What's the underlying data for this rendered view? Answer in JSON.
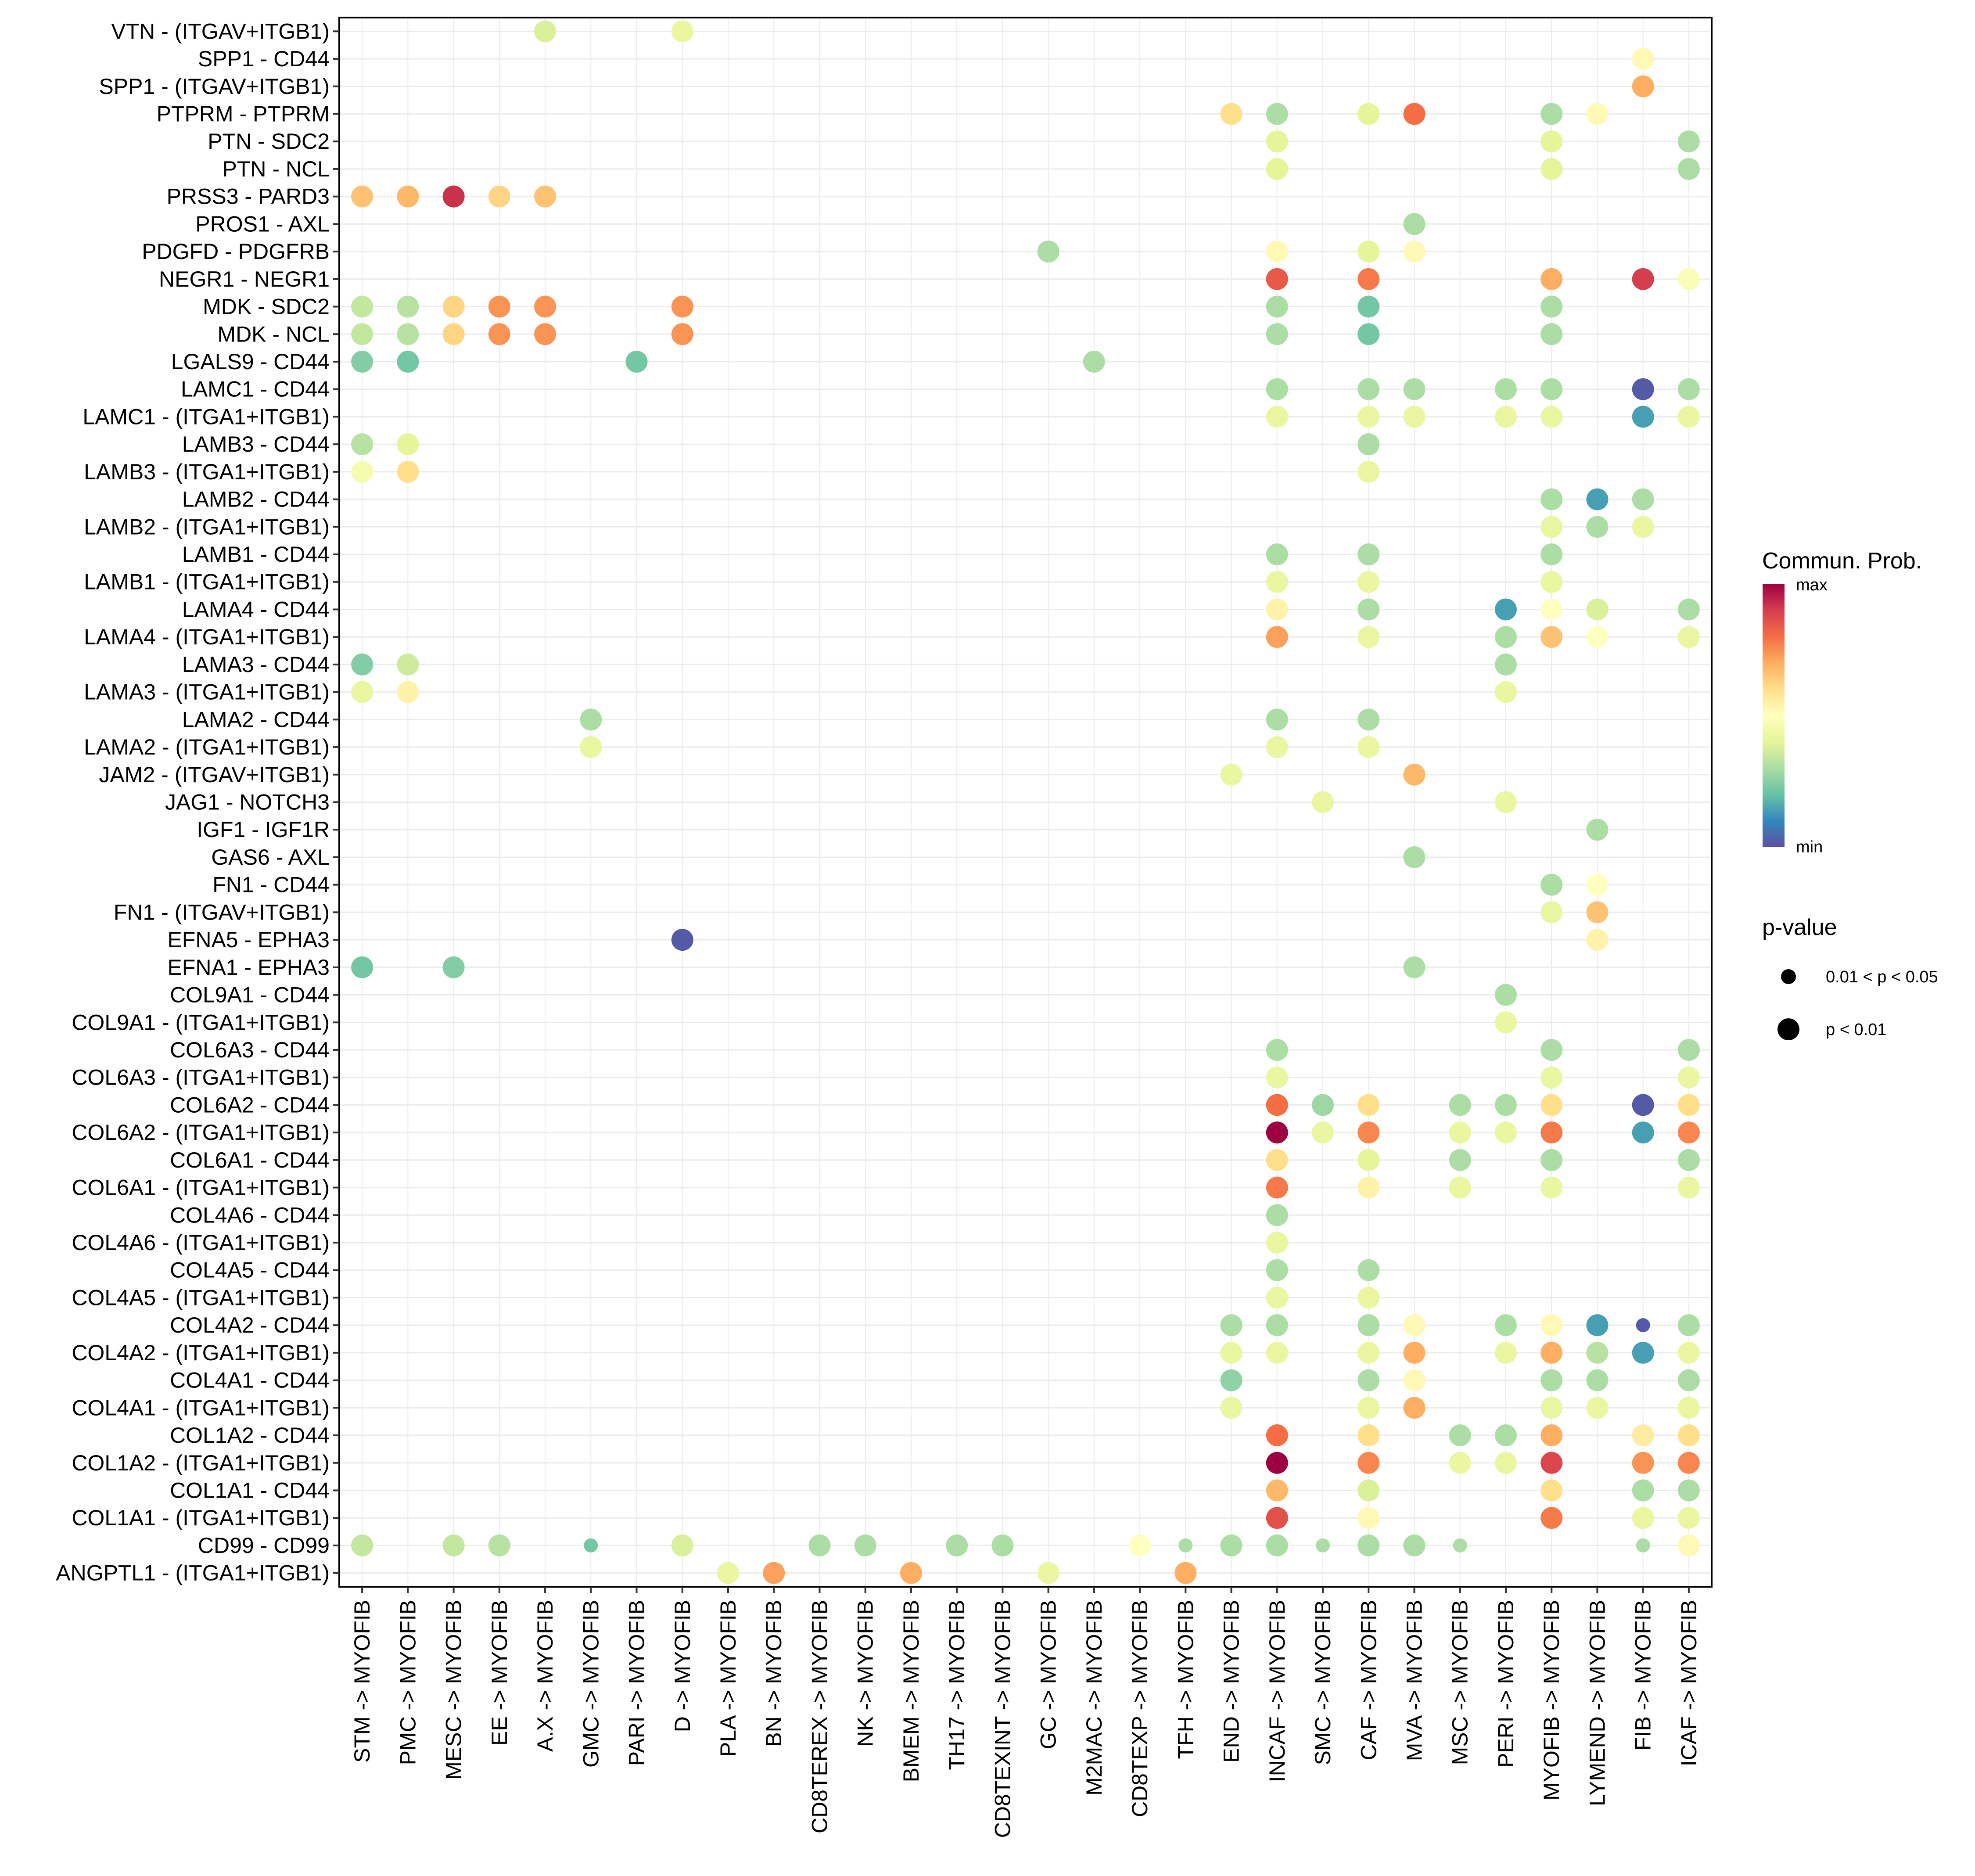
{
  "chart_data": {
    "type": "scatter",
    "subtype": "dot-plot",
    "title": "",
    "xlabel": "",
    "ylabel": "",
    "grid": true,
    "x_categories": [
      "STM -> MYOFIB",
      "PMC -> MYOFIB",
      "MESC -> MYOFIB",
      "EE -> MYOFIB",
      "A.X -> MYOFIB",
      "GMC -> MYOFIB",
      "PARI -> MYOFIB",
      "D -> MYOFIB",
      "PLA -> MYOFIB",
      "BN -> MYOFIB",
      "CD8TEREX -> MYOFIB",
      "NK -> MYOFIB",
      "BMEM -> MYOFIB",
      "TH17 -> MYOFIB",
      "CD8TEXINT -> MYOFIB",
      "GC -> MYOFIB",
      "M2MAC -> MYOFIB",
      "CD8TEXP -> MYOFIB",
      "TFH -> MYOFIB",
      "END -> MYOFIB",
      "INCAF -> MYOFIB",
      "SMC -> MYOFIB",
      "CAF -> MYOFIB",
      "MVA -> MYOFIB",
      "MSC -> MYOFIB",
      "PERI -> MYOFIB",
      "MYOFIB -> MYOFIB",
      "LYMEND -> MYOFIB",
      "FIB -> MYOFIB",
      "ICAF -> MYOFIB"
    ],
    "y_categories": [
      "VTN - (ITGAV+ITGB1)",
      "SPP1 - CD44",
      "SPP1 - (ITGAV+ITGB1)",
      "PTPRM - PTPRM",
      "PTN - SDC2",
      "PTN - NCL",
      "PRSS3 - PARD3",
      "PROS1 - AXL",
      "PDGFD - PDGFRB",
      "NEGR1 - NEGR1",
      "MDK - SDC2",
      "MDK - NCL",
      "LGALS9 - CD44",
      "LAMC1 - CD44",
      "LAMC1 - (ITGA1+ITGB1)",
      "LAMB3 - CD44",
      "LAMB3 - (ITGA1+ITGB1)",
      "LAMB2 - CD44",
      "LAMB2 - (ITGA1+ITGB1)",
      "LAMB1 - CD44",
      "LAMB1 - (ITGA1+ITGB1)",
      "LAMA4 - CD44",
      "LAMA4 - (ITGA1+ITGB1)",
      "LAMA3 - CD44",
      "LAMA3 - (ITGA1+ITGB1)",
      "LAMA2 - CD44",
      "LAMA2 - (ITGA1+ITGB1)",
      "JAM2 - (ITGAV+ITGB1)",
      "JAG1 - NOTCH3",
      "IGF1 - IGF1R",
      "GAS6 - AXL",
      "FN1 - CD44",
      "FN1 - (ITGAV+ITGB1)",
      "EFNA5 - EPHA3",
      "EFNA1 - EPHA3",
      "COL9A1 - CD44",
      "COL9A1 - (ITGA1+ITGB1)",
      "COL6A3 - CD44",
      "COL6A3 - (ITGA1+ITGB1)",
      "COL6A2 - CD44",
      "COL6A2 - (ITGA1+ITGB1)",
      "COL6A1 - CD44",
      "COL6A1 - (ITGA1+ITGB1)",
      "COL4A6 - CD44",
      "COL4A6 - (ITGA1+ITGB1)",
      "COL4A5 - CD44",
      "COL4A5 - (ITGA1+ITGB1)",
      "COL4A2 - CD44",
      "COL4A2 - (ITGA1+ITGB1)",
      "COL4A1 - CD44",
      "COL4A1 - (ITGA1+ITGB1)",
      "COL1A2 - CD44",
      "COL1A2 - (ITGA1+ITGB1)",
      "COL1A1 - CD44",
      "COL1A1 - (ITGA1+ITGB1)",
      "CD99 - CD99",
      "ANGPTL1 - (ITGA1+ITGB1)"
    ],
    "points_note": "each point: [row_index, col_index, comm_prob_relative 0=min..1=max, pvalue_class 1='p < 0.01' 0='0.01 < p < 0.05']",
    "points": [
      [
        0,
        4,
        0.38,
        1
      ],
      [
        0,
        7,
        0.42,
        1
      ],
      [
        1,
        28,
        0.52,
        1
      ],
      [
        2,
        28,
        0.7,
        1
      ],
      [
        3,
        19,
        0.6,
        1
      ],
      [
        3,
        20,
        0.3,
        1
      ],
      [
        3,
        22,
        0.4,
        1
      ],
      [
        3,
        23,
        0.8,
        1
      ],
      [
        3,
        26,
        0.3,
        1
      ],
      [
        3,
        27,
        0.52,
        1
      ],
      [
        4,
        20,
        0.4,
        1
      ],
      [
        4,
        26,
        0.4,
        1
      ],
      [
        4,
        29,
        0.3,
        1
      ],
      [
        5,
        20,
        0.4,
        1
      ],
      [
        5,
        26,
        0.4,
        1
      ],
      [
        5,
        29,
        0.3,
        1
      ],
      [
        6,
        0,
        0.66,
        1
      ],
      [
        6,
        1,
        0.68,
        1
      ],
      [
        6,
        2,
        0.92,
        1
      ],
      [
        6,
        3,
        0.62,
        1
      ],
      [
        6,
        4,
        0.66,
        1
      ],
      [
        7,
        23,
        0.3,
        1
      ],
      [
        8,
        15,
        0.3,
        1
      ],
      [
        8,
        20,
        0.52,
        1
      ],
      [
        8,
        22,
        0.4,
        1
      ],
      [
        8,
        23,
        0.52,
        1
      ],
      [
        9,
        20,
        0.84,
        1
      ],
      [
        9,
        22,
        0.78,
        1
      ],
      [
        9,
        26,
        0.7,
        1
      ],
      [
        9,
        28,
        0.9,
        1
      ],
      [
        9,
        29,
        0.48,
        1
      ],
      [
        10,
        0,
        0.34,
        1
      ],
      [
        10,
        1,
        0.32,
        1
      ],
      [
        10,
        2,
        0.62,
        1
      ],
      [
        10,
        3,
        0.74,
        1
      ],
      [
        10,
        4,
        0.74,
        1
      ],
      [
        10,
        7,
        0.74,
        1
      ],
      [
        10,
        20,
        0.3,
        1
      ],
      [
        10,
        22,
        0.22,
        1
      ],
      [
        10,
        26,
        0.3,
        1
      ],
      [
        11,
        0,
        0.34,
        1
      ],
      [
        11,
        1,
        0.32,
        1
      ],
      [
        11,
        2,
        0.62,
        1
      ],
      [
        11,
        3,
        0.74,
        1
      ],
      [
        11,
        4,
        0.74,
        1
      ],
      [
        11,
        7,
        0.74,
        1
      ],
      [
        11,
        20,
        0.3,
        1
      ],
      [
        11,
        22,
        0.22,
        1
      ],
      [
        11,
        26,
        0.3,
        1
      ],
      [
        12,
        0,
        0.24,
        1
      ],
      [
        12,
        1,
        0.22,
        1
      ],
      [
        12,
        6,
        0.22,
        1
      ],
      [
        12,
        16,
        0.3,
        1
      ],
      [
        13,
        20,
        0.3,
        1
      ],
      [
        13,
        22,
        0.3,
        1
      ],
      [
        13,
        23,
        0.3,
        1
      ],
      [
        13,
        25,
        0.3,
        1
      ],
      [
        13,
        26,
        0.3,
        1
      ],
      [
        13,
        28,
        0.02,
        1
      ],
      [
        13,
        29,
        0.3,
        1
      ],
      [
        14,
        20,
        0.42,
        1
      ],
      [
        14,
        22,
        0.42,
        1
      ],
      [
        14,
        23,
        0.42,
        1
      ],
      [
        14,
        25,
        0.42,
        1
      ],
      [
        14,
        26,
        0.42,
        1
      ],
      [
        14,
        28,
        0.14,
        1
      ],
      [
        14,
        29,
        0.42,
        1
      ],
      [
        15,
        0,
        0.32,
        1
      ],
      [
        15,
        1,
        0.4,
        1
      ],
      [
        15,
        22,
        0.3,
        1
      ],
      [
        16,
        0,
        0.46,
        1
      ],
      [
        16,
        1,
        0.6,
        1
      ],
      [
        16,
        22,
        0.42,
        1
      ],
      [
        17,
        26,
        0.3,
        1
      ],
      [
        17,
        27,
        0.14,
        1
      ],
      [
        17,
        28,
        0.3,
        1
      ],
      [
        18,
        26,
        0.42,
        1
      ],
      [
        18,
        27,
        0.3,
        1
      ],
      [
        18,
        28,
        0.42,
        1
      ],
      [
        19,
        20,
        0.3,
        1
      ],
      [
        19,
        22,
        0.3,
        1
      ],
      [
        19,
        26,
        0.3,
        1
      ],
      [
        20,
        20,
        0.42,
        1
      ],
      [
        20,
        22,
        0.42,
        1
      ],
      [
        20,
        26,
        0.42,
        1
      ],
      [
        21,
        20,
        0.54,
        1
      ],
      [
        21,
        22,
        0.3,
        1
      ],
      [
        21,
        25,
        0.14,
        1
      ],
      [
        21,
        26,
        0.5,
        1
      ],
      [
        21,
        27,
        0.38,
        1
      ],
      [
        21,
        29,
        0.3,
        1
      ],
      [
        22,
        20,
        0.72,
        1
      ],
      [
        22,
        22,
        0.42,
        1
      ],
      [
        22,
        25,
        0.3,
        1
      ],
      [
        22,
        26,
        0.66,
        1
      ],
      [
        22,
        27,
        0.5,
        1
      ],
      [
        22,
        29,
        0.42,
        1
      ],
      [
        23,
        0,
        0.24,
        1
      ],
      [
        23,
        1,
        0.36,
        1
      ],
      [
        23,
        25,
        0.3,
        1
      ],
      [
        24,
        0,
        0.42,
        1
      ],
      [
        24,
        1,
        0.54,
        1
      ],
      [
        24,
        25,
        0.42,
        1
      ],
      [
        25,
        5,
        0.3,
        1
      ],
      [
        25,
        20,
        0.3,
        1
      ],
      [
        25,
        22,
        0.3,
        1
      ],
      [
        26,
        5,
        0.42,
        1
      ],
      [
        26,
        20,
        0.42,
        1
      ],
      [
        26,
        22,
        0.42,
        1
      ],
      [
        27,
        19,
        0.42,
        1
      ],
      [
        27,
        23,
        0.68,
        1
      ],
      [
        28,
        21,
        0.42,
        1
      ],
      [
        28,
        25,
        0.42,
        1
      ],
      [
        29,
        27,
        0.3,
        1
      ],
      [
        30,
        23,
        0.3,
        1
      ],
      [
        31,
        26,
        0.3,
        1
      ],
      [
        31,
        27,
        0.5,
        1
      ],
      [
        32,
        26,
        0.42,
        1
      ],
      [
        32,
        27,
        0.66,
        1
      ],
      [
        33,
        7,
        0.02,
        1
      ],
      [
        33,
        27,
        0.54,
        1
      ],
      [
        34,
        0,
        0.22,
        1
      ],
      [
        34,
        2,
        0.24,
        1
      ],
      [
        34,
        23,
        0.3,
        1
      ],
      [
        35,
        25,
        0.3,
        1
      ],
      [
        36,
        25,
        0.42,
        1
      ],
      [
        37,
        20,
        0.3,
        1
      ],
      [
        37,
        26,
        0.3,
        1
      ],
      [
        37,
        29,
        0.3,
        1
      ],
      [
        38,
        20,
        0.42,
        1
      ],
      [
        38,
        26,
        0.42,
        1
      ],
      [
        38,
        29,
        0.42,
        1
      ],
      [
        39,
        20,
        0.8,
        1
      ],
      [
        39,
        21,
        0.28,
        1
      ],
      [
        39,
        22,
        0.6,
        1
      ],
      [
        39,
        24,
        0.3,
        1
      ],
      [
        39,
        25,
        0.3,
        1
      ],
      [
        39,
        26,
        0.6,
        1
      ],
      [
        39,
        28,
        0.02,
        1
      ],
      [
        39,
        29,
        0.6,
        1
      ],
      [
        40,
        20,
        1.0,
        1
      ],
      [
        40,
        21,
        0.42,
        1
      ],
      [
        40,
        22,
        0.76,
        1
      ],
      [
        40,
        24,
        0.42,
        1
      ],
      [
        40,
        25,
        0.42,
        1
      ],
      [
        40,
        26,
        0.78,
        1
      ],
      [
        40,
        28,
        0.14,
        1
      ],
      [
        40,
        29,
        0.76,
        1
      ],
      [
        41,
        20,
        0.6,
        1
      ],
      [
        41,
        22,
        0.4,
        1
      ],
      [
        41,
        24,
        0.3,
        1
      ],
      [
        41,
        26,
        0.3,
        1
      ],
      [
        41,
        29,
        0.3,
        1
      ],
      [
        42,
        20,
        0.78,
        1
      ],
      [
        42,
        22,
        0.54,
        1
      ],
      [
        42,
        24,
        0.42,
        1
      ],
      [
        42,
        26,
        0.42,
        1
      ],
      [
        42,
        29,
        0.42,
        1
      ],
      [
        43,
        20,
        0.3,
        1
      ],
      [
        44,
        20,
        0.42,
        1
      ],
      [
        45,
        20,
        0.3,
        1
      ],
      [
        45,
        22,
        0.3,
        1
      ],
      [
        46,
        20,
        0.42,
        1
      ],
      [
        46,
        22,
        0.42,
        1
      ],
      [
        47,
        19,
        0.3,
        1
      ],
      [
        47,
        20,
        0.3,
        1
      ],
      [
        47,
        22,
        0.3,
        1
      ],
      [
        47,
        23,
        0.52,
        1
      ],
      [
        47,
        25,
        0.3,
        1
      ],
      [
        47,
        26,
        0.52,
        1
      ],
      [
        47,
        27,
        0.14,
        1
      ],
      [
        47,
        28,
        0.02,
        0
      ],
      [
        47,
        29,
        0.3,
        1
      ],
      [
        48,
        19,
        0.42,
        1
      ],
      [
        48,
        20,
        0.42,
        1
      ],
      [
        48,
        22,
        0.42,
        1
      ],
      [
        48,
        23,
        0.7,
        1
      ],
      [
        48,
        25,
        0.42,
        1
      ],
      [
        48,
        26,
        0.7,
        1
      ],
      [
        48,
        27,
        0.32,
        1
      ],
      [
        48,
        28,
        0.14,
        1
      ],
      [
        48,
        29,
        0.42,
        1
      ],
      [
        49,
        19,
        0.26,
        1
      ],
      [
        49,
        22,
        0.3,
        1
      ],
      [
        49,
        23,
        0.52,
        1
      ],
      [
        49,
        26,
        0.3,
        1
      ],
      [
        49,
        27,
        0.3,
        1
      ],
      [
        49,
        29,
        0.3,
        1
      ],
      [
        50,
        19,
        0.42,
        1
      ],
      [
        50,
        22,
        0.42,
        1
      ],
      [
        50,
        23,
        0.7,
        1
      ],
      [
        50,
        26,
        0.42,
        1
      ],
      [
        50,
        27,
        0.42,
        1
      ],
      [
        50,
        29,
        0.42,
        1
      ],
      [
        51,
        20,
        0.8,
        1
      ],
      [
        51,
        22,
        0.6,
        1
      ],
      [
        51,
        24,
        0.3,
        1
      ],
      [
        51,
        25,
        0.3,
        1
      ],
      [
        51,
        26,
        0.7,
        1
      ],
      [
        51,
        28,
        0.56,
        1
      ],
      [
        51,
        29,
        0.6,
        1
      ],
      [
        52,
        20,
        1.0,
        1
      ],
      [
        52,
        22,
        0.76,
        1
      ],
      [
        52,
        24,
        0.42,
        1
      ],
      [
        52,
        25,
        0.42,
        1
      ],
      [
        52,
        26,
        0.88,
        1
      ],
      [
        52,
        28,
        0.74,
        1
      ],
      [
        52,
        29,
        0.76,
        1
      ],
      [
        53,
        20,
        0.68,
        1
      ],
      [
        53,
        22,
        0.38,
        1
      ],
      [
        53,
        26,
        0.6,
        1
      ],
      [
        53,
        28,
        0.3,
        1
      ],
      [
        53,
        29,
        0.3,
        1
      ],
      [
        54,
        20,
        0.86,
        1
      ],
      [
        54,
        22,
        0.52,
        1
      ],
      [
        54,
        26,
        0.78,
        1
      ],
      [
        54,
        28,
        0.42,
        1
      ],
      [
        54,
        29,
        0.42,
        1
      ],
      [
        55,
        0,
        0.34,
        1
      ],
      [
        55,
        2,
        0.34,
        1
      ],
      [
        55,
        3,
        0.32,
        1
      ],
      [
        55,
        5,
        0.22,
        0
      ],
      [
        55,
        7,
        0.38,
        1
      ],
      [
        55,
        10,
        0.3,
        1
      ],
      [
        55,
        11,
        0.3,
        1
      ],
      [
        55,
        13,
        0.3,
        1
      ],
      [
        55,
        14,
        0.3,
        1
      ],
      [
        55,
        17,
        0.5,
        1
      ],
      [
        55,
        18,
        0.3,
        0
      ],
      [
        55,
        19,
        0.3,
        1
      ],
      [
        55,
        20,
        0.3,
        1
      ],
      [
        55,
        21,
        0.3,
        0
      ],
      [
        55,
        22,
        0.3,
        1
      ],
      [
        55,
        23,
        0.3,
        1
      ],
      [
        55,
        24,
        0.3,
        0
      ],
      [
        55,
        28,
        0.3,
        0
      ],
      [
        55,
        29,
        0.52,
        1
      ],
      [
        56,
        8,
        0.42,
        1
      ],
      [
        56,
        9,
        0.72,
        1
      ],
      [
        56,
        12,
        0.7,
        1
      ],
      [
        56,
        15,
        0.42,
        1
      ],
      [
        56,
        18,
        0.7,
        1
      ]
    ],
    "legend": {
      "color_title": "Commun. Prob.",
      "color_max_label": "max",
      "color_min_label": "min",
      "colormap": [
        "#9E0142",
        "#D53E4F",
        "#F46D43",
        "#FDAE61",
        "#FEE08B",
        "#FFFFBF",
        "#E6F598",
        "#ABDDA4",
        "#66C2A5",
        "#3288BD",
        "#5E4FA2"
      ],
      "size_title": "p-value",
      "size_entries": [
        "0.01 < p < 0.05",
        "p < 0.01"
      ],
      "placement": "right"
    }
  }
}
